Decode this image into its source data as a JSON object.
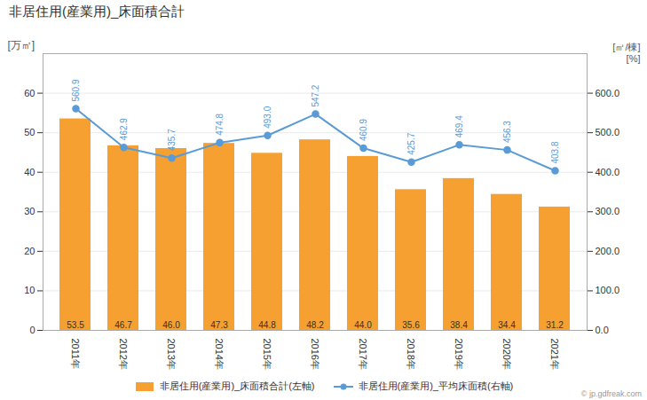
{
  "chart_data": {
    "type": "combo",
    "title": "非居住用(産業用)_床面積合計",
    "categories": [
      "2011年",
      "2012年",
      "2013年",
      "2014年",
      "2015年",
      "2016年",
      "2017年",
      "2018年",
      "2019年",
      "2020年",
      "2021年"
    ],
    "ylabel": "[万㎡]",
    "y2label": [
      "[㎡/棟]",
      "[%]"
    ],
    "ylim": [
      0,
      70
    ],
    "yticks": [
      0,
      10,
      20,
      30,
      40,
      50,
      60
    ],
    "y2lim": [
      0,
      700
    ],
    "y2ticks": [
      {
        "value": 0,
        "label": "0.0"
      },
      {
        "value": 100,
        "label": "100.0"
      },
      {
        "value": 200,
        "label": "200.0"
      },
      {
        "value": 300,
        "label": "300.0"
      },
      {
        "value": 400,
        "label": "400.0"
      },
      {
        "value": 500,
        "label": "500.0"
      },
      {
        "value": 600,
        "label": "600.0"
      }
    ],
    "grid": true,
    "legend": "bottom",
    "data_labels": true,
    "annotations": [
      "© jp.gdfreak.com"
    ],
    "series": [
      {
        "name": "非居住用(産業用)_床面積合計(左軸)",
        "type": "bar",
        "color": "#F5A030",
        "values": [
          53.5,
          46.7,
          46.0,
          47.3,
          44.8,
          48.2,
          44.0,
          35.6,
          38.4,
          34.4,
          31.2
        ],
        "value_labels": [
          "53.5",
          "46.7",
          "46.0",
          "47.3",
          "44.8",
          "48.2",
          "44.0",
          "35.6",
          "38.4",
          "34.4",
          "31.2"
        ]
      },
      {
        "name": "非居住用(産業用)_平均床面積(右軸)",
        "type": "line",
        "axis": "y2",
        "color": "#5B9BD5",
        "marker": "circle",
        "values": [
          560.9,
          462.9,
          435.7,
          474.8,
          493.0,
          547.2,
          460.9,
          425.7,
          469.4,
          456.3,
          403.8
        ],
        "value_labels": [
          "560.9",
          "462.9",
          "435.7",
          "474.8",
          "493.0",
          "547.2",
          "460.9",
          "425.7",
          "469.4",
          "456.3",
          "403.8"
        ]
      }
    ]
  }
}
